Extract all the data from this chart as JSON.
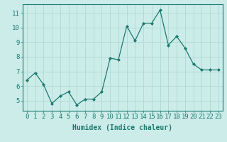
{
  "x": [
    0,
    1,
    2,
    3,
    4,
    5,
    6,
    7,
    8,
    9,
    10,
    11,
    12,
    13,
    14,
    15,
    16,
    17,
    18,
    19,
    20,
    21,
    22,
    23
  ],
  "y": [
    6.4,
    6.9,
    6.1,
    4.8,
    5.3,
    5.6,
    4.7,
    5.1,
    5.1,
    5.6,
    7.9,
    7.8,
    10.1,
    9.1,
    10.3,
    10.3,
    11.2,
    8.8,
    9.4,
    8.6,
    7.5,
    7.1,
    7.1,
    7.1
  ],
  "line_color": "#1a7a6e",
  "marker": "D",
  "marker_size": 2.0,
  "bg_color": "#ccecea",
  "grid_color": "#aed8d4",
  "xlabel": "Humidex (Indice chaleur)",
  "xlim": [
    -0.5,
    23.5
  ],
  "ylim": [
    4.3,
    11.6
  ],
  "yticks": [
    5,
    6,
    7,
    8,
    9,
    10,
    11
  ],
  "xticks": [
    0,
    1,
    2,
    3,
    4,
    5,
    6,
    7,
    8,
    9,
    10,
    11,
    12,
    13,
    14,
    15,
    16,
    17,
    18,
    19,
    20,
    21,
    22,
    23
  ],
  "label_fontsize": 7,
  "tick_fontsize": 6.5,
  "linewidth": 0.9
}
